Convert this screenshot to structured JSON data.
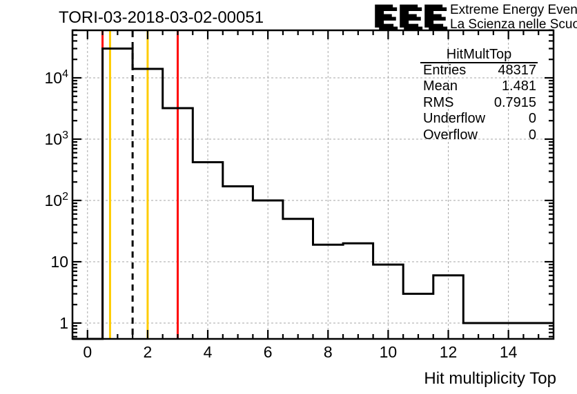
{
  "title": "TORI-03-2018-03-02-00051",
  "logo": {
    "acronym": "EEE",
    "line1": "Extreme Energy Events",
    "line2": "La Scienza nelle Scuole",
    "color": "#2424dd",
    "shadow_color": "#b8b8b8"
  },
  "stats": {
    "header": "HitMultTop",
    "rows": [
      {
        "label": "Entries",
        "value": "48317"
      },
      {
        "label": "Mean",
        "value": "1.481"
      },
      {
        "label": "RMS",
        "value": "0.7915"
      },
      {
        "label": "Underflow",
        "value": "0"
      },
      {
        "label": "Overflow",
        "value": "0"
      }
    ]
  },
  "chart_data": {
    "type": "bar",
    "subtype": "step-histogram",
    "title": "TORI-03-2018-03-02-00051",
    "xlabel": "Hit multiplicity Top",
    "ylabel": "",
    "y_scale": "log",
    "x_range": [
      -0.5,
      15.5
    ],
    "y_range": [
      0.55,
      60000
    ],
    "grid": true,
    "legend": "none",
    "bin_centers": [
      0,
      1,
      2,
      3,
      4,
      5,
      6,
      7,
      8,
      9,
      10,
      11,
      12,
      13,
      14,
      15
    ],
    "counts": [
      0,
      30000,
      14000,
      3200,
      420,
      170,
      100,
      50,
      19,
      20,
      9,
      3,
      6,
      1,
      1,
      1
    ],
    "line_color": "#000000",
    "x_tick_labels": [
      {
        "v": 0,
        "label": "0"
      },
      {
        "v": 2,
        "label": "2"
      },
      {
        "v": 4,
        "label": "4"
      },
      {
        "v": 6,
        "label": "6"
      },
      {
        "v": 8,
        "label": "8"
      },
      {
        "v": 10,
        "label": "10"
      },
      {
        "v": 12,
        "label": "12"
      },
      {
        "v": 14,
        "label": "14"
      }
    ],
    "x_minor_step": 0.5,
    "y_tick_labels": [
      {
        "v": 1,
        "label": "1"
      },
      {
        "v": 10,
        "label": "10"
      },
      {
        "v": 100,
        "label": "10^{2}"
      },
      {
        "v": 1000,
        "label": "10^{3}"
      },
      {
        "v": 10000,
        "label": "10^{4}"
      }
    ],
    "marker_lines": [
      {
        "x": 0.5,
        "color": "#ff0000",
        "style": "solid"
      },
      {
        "x": 0.75,
        "color": "#ffcc00",
        "style": "solid"
      },
      {
        "x": 1.5,
        "color": "#000000",
        "style": "dashed"
      },
      {
        "x": 2.0,
        "color": "#ffcc00",
        "style": "solid"
      },
      {
        "x": 3.0,
        "color": "#ff0000",
        "style": "solid"
      }
    ],
    "grid_color": "#a6a6a6",
    "background": "#ffffff"
  }
}
